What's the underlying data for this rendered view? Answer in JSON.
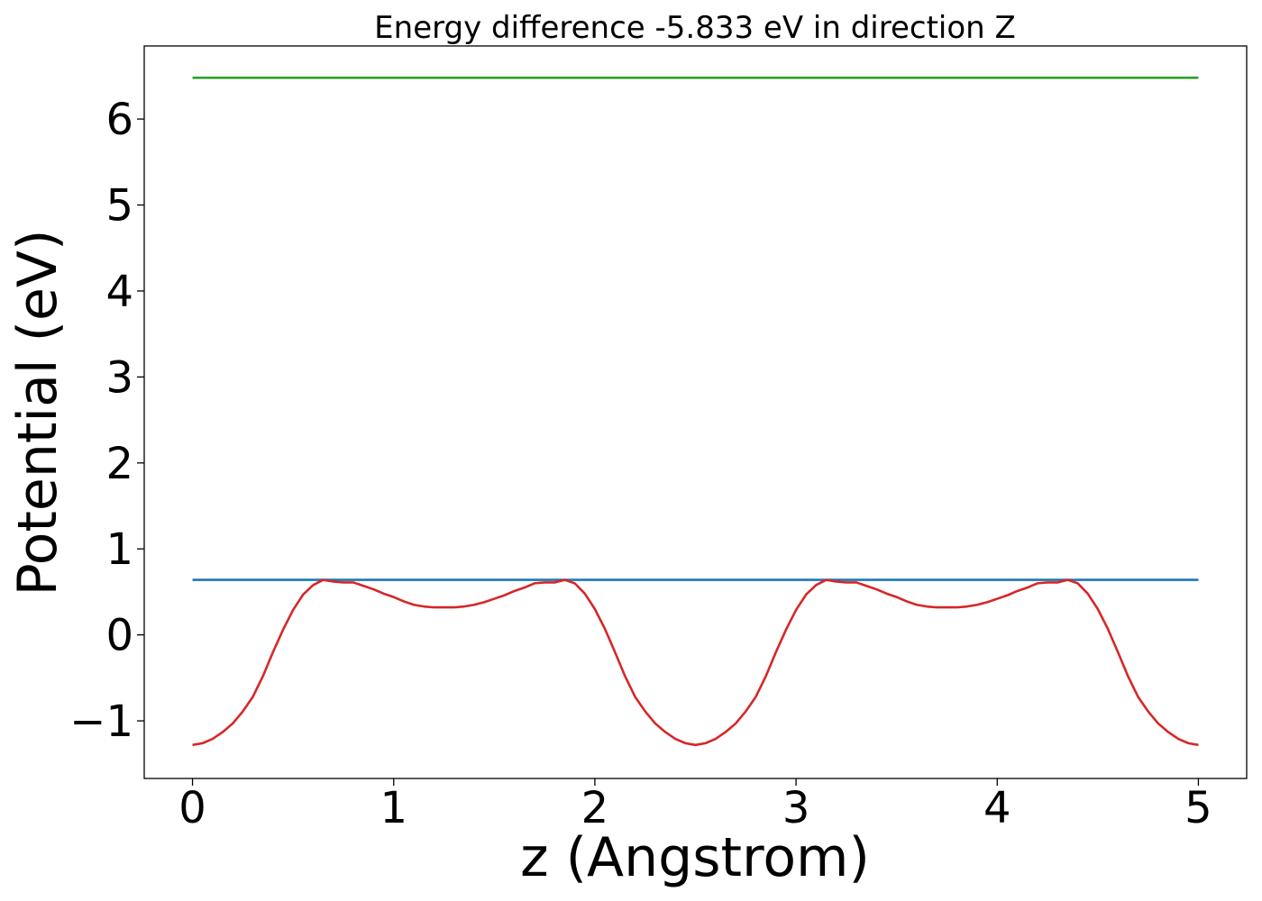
{
  "chart_data": {
    "type": "line",
    "title": "Energy difference -5.833 eV in direction Z",
    "xlabel": "z (Angstrom)",
    "ylabel": "Potential (eV)",
    "xlim": [
      -0.24,
      5.24
    ],
    "ylim": [
      -1.67,
      6.85
    ],
    "xticks": [
      0,
      1,
      2,
      3,
      4,
      5
    ],
    "xtick_labels": [
      "0",
      "1",
      "2",
      "3",
      "4",
      "5"
    ],
    "yticks": [
      -1,
      0,
      1,
      2,
      3,
      4,
      5,
      6
    ],
    "ytick_labels": [
      "−1",
      "0",
      "1",
      "2",
      "3",
      "4",
      "5",
      "6"
    ],
    "grid": false,
    "legend": "none",
    "series": [
      {
        "color": "#2ca02c",
        "x": [
          0,
          5
        ],
        "y": [
          6.48,
          6.48
        ]
      },
      {
        "color": "#1f77b4",
        "x": [
          0,
          5
        ],
        "y": [
          0.64,
          0.64
        ]
      },
      {
        "color": "#d62728",
        "x": [
          0,
          0.05,
          0.1,
          0.15,
          0.2,
          0.25,
          0.3,
          0.35,
          0.4,
          0.45,
          0.5,
          0.55,
          0.6,
          0.65,
          0.7,
          0.75,
          0.8,
          0.85,
          0.9,
          0.95,
          1.0,
          1.05,
          1.1,
          1.15,
          1.2,
          1.25,
          1.3,
          1.35,
          1.4,
          1.45,
          1.5,
          1.55,
          1.6,
          1.65,
          1.7,
          1.75,
          1.8,
          1.85,
          1.9,
          1.95,
          2.0,
          2.05,
          2.1,
          2.15,
          2.2,
          2.25,
          2.3,
          2.35,
          2.4,
          2.45,
          2.5,
          2.55,
          2.6,
          2.65,
          2.7,
          2.75,
          2.8,
          2.85,
          2.9,
          2.95,
          3.0,
          3.05,
          3.1,
          3.15,
          3.2,
          3.25,
          3.3,
          3.35,
          3.4,
          3.45,
          3.5,
          3.55,
          3.6,
          3.65,
          3.7,
          3.75,
          3.8,
          3.85,
          3.9,
          3.95,
          4.0,
          4.05,
          4.1,
          4.15,
          4.2,
          4.25,
          4.3,
          4.35,
          4.4,
          4.45,
          4.5,
          4.55,
          4.6,
          4.65,
          4.7,
          4.75,
          4.8,
          4.85,
          4.9,
          4.95,
          5.0
        ],
        "y": [
          -1.28,
          -1.26,
          -1.21,
          -1.13,
          -1.03,
          -0.89,
          -0.72,
          -0.48,
          -0.2,
          0.06,
          0.29,
          0.47,
          0.58,
          0.64,
          0.62,
          0.61,
          0.61,
          0.57,
          0.53,
          0.48,
          0.44,
          0.39,
          0.35,
          0.33,
          0.32,
          0.32,
          0.32,
          0.33,
          0.35,
          0.38,
          0.42,
          0.46,
          0.51,
          0.55,
          0.6,
          0.61,
          0.61,
          0.64,
          0.6,
          0.48,
          0.3,
          0.07,
          -0.2,
          -0.48,
          -0.72,
          -0.89,
          -1.03,
          -1.13,
          -1.21,
          -1.26,
          -1.28,
          -1.26,
          -1.21,
          -1.13,
          -1.03,
          -0.89,
          -0.72,
          -0.48,
          -0.2,
          0.06,
          0.29,
          0.47,
          0.58,
          0.64,
          0.62,
          0.61,
          0.61,
          0.57,
          0.53,
          0.48,
          0.44,
          0.39,
          0.35,
          0.33,
          0.32,
          0.32,
          0.32,
          0.33,
          0.35,
          0.38,
          0.42,
          0.46,
          0.51,
          0.55,
          0.6,
          0.61,
          0.61,
          0.64,
          0.6,
          0.48,
          0.3,
          0.07,
          -0.2,
          -0.48,
          -0.72,
          -0.89,
          -1.03,
          -1.13,
          -1.21,
          -1.26,
          -1.28
        ]
      }
    ]
  }
}
